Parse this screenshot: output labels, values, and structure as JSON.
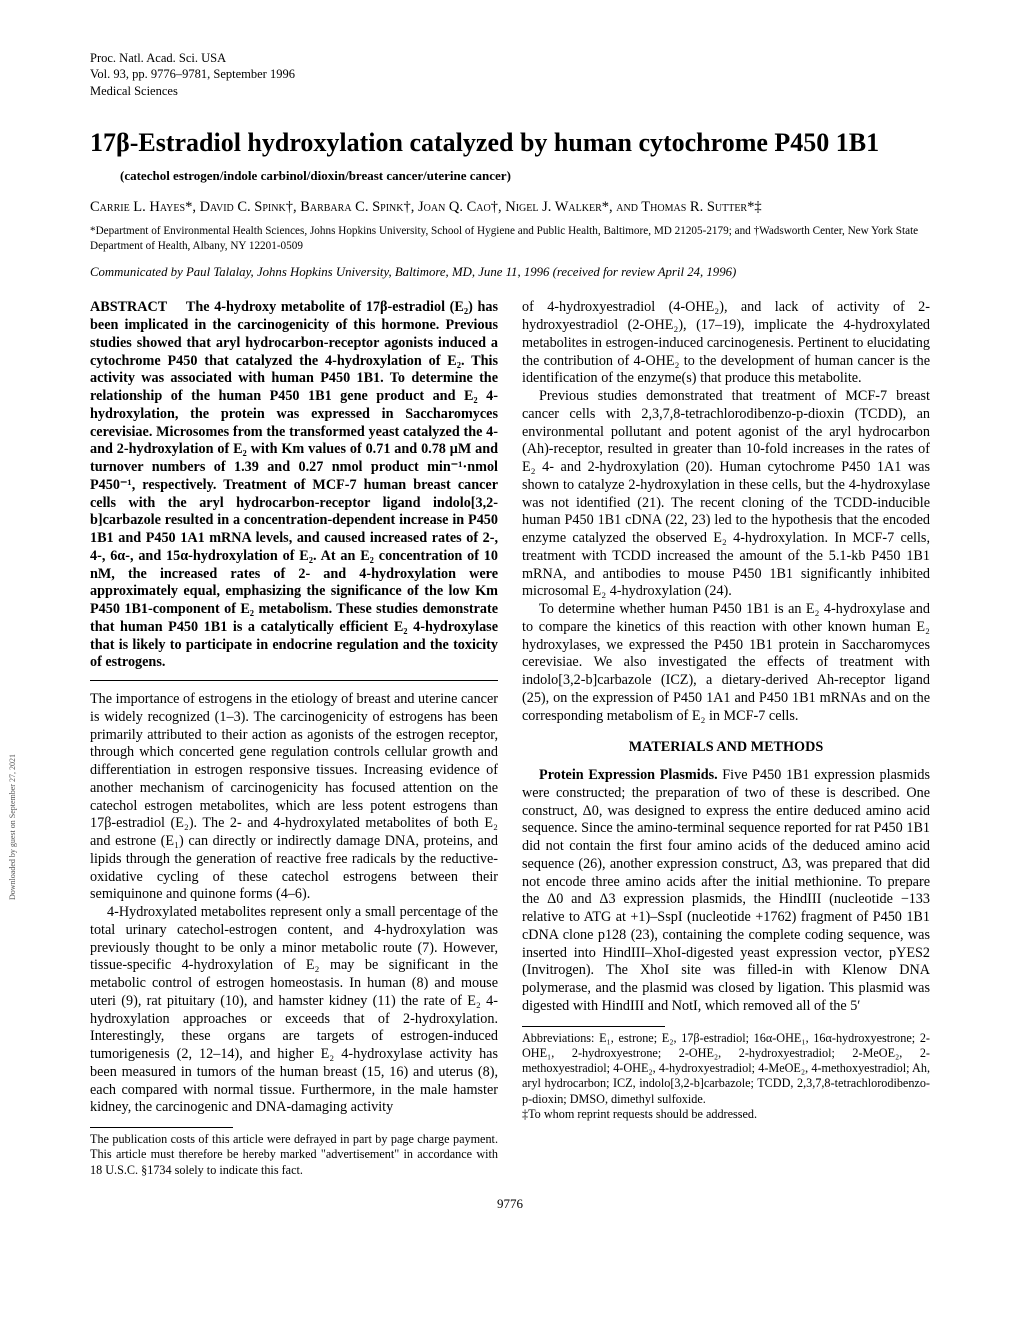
{
  "header": {
    "line1": "Proc. Natl. Acad. Sci. USA",
    "line2": "Vol. 93, pp. 9776–9781, September 1996",
    "line3": "Medical Sciences"
  },
  "title": "17β-Estradiol hydroxylation catalyzed by human cytochrome P450 1B1",
  "keywords": "(catechol estrogen/indole carbinol/dioxin/breast cancer/uterine cancer)",
  "authors": "Carrie L. Hayes*, David C. Spink†, Barbara C. Spink†, Joan Q. Cao†, Nigel J. Walker*, and Thomas R. Sutter*‡",
  "affiliations": "*Department of Environmental Health Sciences, Johns Hopkins University, School of Hygiene and Public Health, Baltimore, MD 21205-2179; and †Wadsworth Center, New York State Department of Health, Albany, NY 12201-0509",
  "communicated": "Communicated by Paul Talalay, Johns Hopkins University, Baltimore, MD, June 11, 1996 (received for review April 24, 1996)",
  "abstract_label": "ABSTRACT",
  "abstract_body": "The 4-hydroxy metabolite of 17β-estradiol (E₂) has been implicated in the carcinogenicity of this hormone. Previous studies showed that aryl hydrocarbon-receptor agonists induced a cytochrome P450 that catalyzed the 4-hydroxylation of E₂. This activity was associated with human P450 1B1. To determine the relationship of the human P450 1B1 gene product and E₂ 4-hydroxylation, the protein was expressed in Saccharomyces cerevisiae. Microsomes from the transformed yeast catalyzed the 4- and 2-hydroxylation of E₂ with Km values of 0.71 and 0.78 μM and turnover numbers of 1.39 and 0.27 nmol product min⁻¹·nmol P450⁻¹, respectively. Treatment of MCF-7 human breast cancer cells with the aryl hydrocarbon-receptor ligand indolo[3,2-b]carbazole resulted in a concentration-dependent increase in P450 1B1 and P450 1A1 mRNA levels, and caused increased rates of 2-, 4-, 6α-, and 15α-hydroxylation of E₂. At an E₂ concentration of 10 nM, the increased rates of 2- and 4-hydroxylation were approximately equal, emphasizing the significance of the low Km P450 1B1-component of E₂ metabolism. These studies demonstrate that human P450 1B1 is a catalytically efficient E₂ 4-hydroxylase that is likely to participate in endocrine regulation and the toxicity of estrogens.",
  "intro_p1": "The importance of estrogens in the etiology of breast and uterine cancer is widely recognized (1–3). The carcinogenicity of estrogens has been primarily attributed to their action as agonists of the estrogen receptor, through which concerted gene regulation controls cellular growth and differentiation in estrogen responsive tissues. Increasing evidence of another mechanism of carcinogenicity has focused attention on the catechol estrogen metabolites, which are less potent estrogens than 17β-estradiol (E₂). The 2- and 4-hydroxylated metabolites of both E₂ and estrone (E₁) can directly or indirectly damage DNA, proteins, and lipids through the generation of reactive free radicals by the reductive-oxidative cycling of these catechol estrogens between their semiquinone and quinone forms (4–6).",
  "intro_p2": "4-Hydroxylated metabolites represent only a small percentage of the total urinary catechol-estrogen content, and 4-hydroxylation was previously thought to be only a minor metabolic route (7). However, tissue-specific 4-hydroxylation of E₂ may be significant in the metabolic control of estrogen homeostasis. In human (8) and mouse uteri (9), rat pituitary (10), and hamster kidney (11) the rate of E₂ 4-hydroxylation approaches or exceeds that of 2-hydroxylation. Interestingly, these organs are targets of estrogen-induced tumorigenesis (2, 12–14), and higher E₂ 4-hydroxylase activity has been measured in tumors of the human breast (15, 16) and uterus (8), each compared with normal tissue. Furthermore, in the male hamster kidney, the carcinogenic and DNA-damaging activity",
  "col2_p1": "of 4-hydroxyestradiol (4-OHE₂), and lack of activity of 2-hydroxyestradiol (2-OHE₂), (17–19), implicate the 4-hydroxylated metabolites in estrogen-induced carcinogenesis. Pertinent to elucidating the contribution of 4-OHE₂ to the development of human cancer is the identification of the enzyme(s) that produce this metabolite.",
  "col2_p2": "Previous studies demonstrated that treatment of MCF-7 breast cancer cells with 2,3,7,8-tetrachlorodibenzo-p-dioxin (TCDD), an environmental pollutant and potent agonist of the aryl hydrocarbon (Ah)-receptor, resulted in greater than 10-fold increases in the rates of E₂ 4- and 2-hydroxylation (20). Human cytochrome P450 1A1 was shown to catalyze 2-hydroxylation in these cells, but the 4-hydroxylase was not identified (21). The recent cloning of the TCDD-inducible human P450 1B1 cDNA (22, 23) led to the hypothesis that the encoded enzyme catalyzed the observed E₂ 4-hydroxylation. In MCF-7 cells, treatment with TCDD increased the amount of the 5.1-kb P450 1B1 mRNA, and antibodies to mouse P450 1B1 significantly inhibited microsomal E₂ 4-hydroxylation (24).",
  "col2_p3": "To determine whether human P450 1B1 is an E₂ 4-hydroxylase and to compare the kinetics of this reaction with other known human E₂ hydroxylases, we expressed the P450 1B1 protein in Saccharomyces cerevisiae. We also investigated the effects of treatment with indolo[3,2-b]carbazole (ICZ), a dietary-derived Ah-receptor ligand (25), on the expression of P450 1A1 and P450 1B1 mRNAs and on the corresponding metabolism of E₂ in MCF-7 cells.",
  "methods_heading": "MATERIALS AND METHODS",
  "methods_p1": "Protein Expression Plasmids. Five P450 1B1 expression plasmids were constructed; the preparation of two of these is described. One construct, Δ0, was designed to express the entire deduced amino acid sequence. Since the amino-terminal sequence reported for rat P450 1B1 did not contain the first four amino acids of the deduced amino acid sequence (26), another expression construct, Δ3, was prepared that did not encode three amino acids after the initial methionine. To prepare the Δ0 and Δ3 expression plasmids, the HindIII (nucleotide −133 relative to ATG at +1)–SspI (nucleotide +1762) fragment of P450 1B1 cDNA clone p128 (23), containing the complete coding sequence, was inserted into HindIII–XhoI-digested yeast expression vector, pYES2 (Invitrogen). The XhoI site was filled-in with Klenow DNA polymerase, and the plasmid was closed by ligation. This plasmid was digested with HindIII and NotI, which removed all of the 5′",
  "footnote_left": "The publication costs of this article were defrayed in part by page charge payment. This article must therefore be hereby marked \"advertisement\" in accordance with 18 U.S.C. §1734 solely to indicate this fact.",
  "footnote_right_abbrev": "Abbreviations: E₁, estrone; E₂, 17β-estradiol; 16α-OHE₁, 16α-hydroxyestrone; 2-OHE₁, 2-hydroxyestrone; 2-OHE₂, 2-hydroxyestradiol; 2-MeOE₂, 2-methoxyestradiol; 4-OHE₂, 4-hydroxyestradiol; 4-MeOE₂, 4-methoxyestradiol; Ah, aryl hydrocarbon; ICZ, indolo[3,2-b]carbazole; TCDD, 2,3,7,8-tetrachlorodibenzo-p-dioxin; DMSO, dimethyl sulfoxide.",
  "footnote_right_reprint": "‡To whom reprint requests should be addressed.",
  "pagenum": "9776",
  "sideways": "Downloaded by guest on September 27, 2021"
}
